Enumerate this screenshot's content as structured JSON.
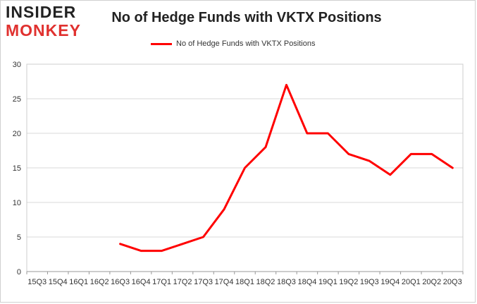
{
  "logo": {
    "line1": "INSIDER",
    "line2": "MONKEY"
  },
  "chart_data": {
    "type": "line",
    "title": "No of Hedge Funds with VKTX Positions",
    "xlabel": "",
    "ylabel": "",
    "categories": [
      "15Q3",
      "15Q4",
      "16Q1",
      "16Q2",
      "16Q3",
      "16Q4",
      "17Q1",
      "17Q2",
      "17Q3",
      "17Q4",
      "18Q1",
      "18Q2",
      "18Q3",
      "18Q4",
      "19Q1",
      "19Q2",
      "19Q3",
      "19Q4",
      "20Q1",
      "20Q2",
      "20Q3"
    ],
    "ylim": [
      0,
      30
    ],
    "yticks": [
      0,
      5,
      10,
      15,
      20,
      25,
      30
    ],
    "grid": true,
    "legend_position": "top-center",
    "series": [
      {
        "name": "No of Hedge Funds with VKTX Positions",
        "color": "#ff0000",
        "values": [
          null,
          null,
          null,
          null,
          4,
          3,
          3,
          4,
          5,
          9,
          15,
          18,
          27,
          20,
          20,
          17,
          16,
          14,
          17,
          17,
          15
        ]
      }
    ]
  }
}
